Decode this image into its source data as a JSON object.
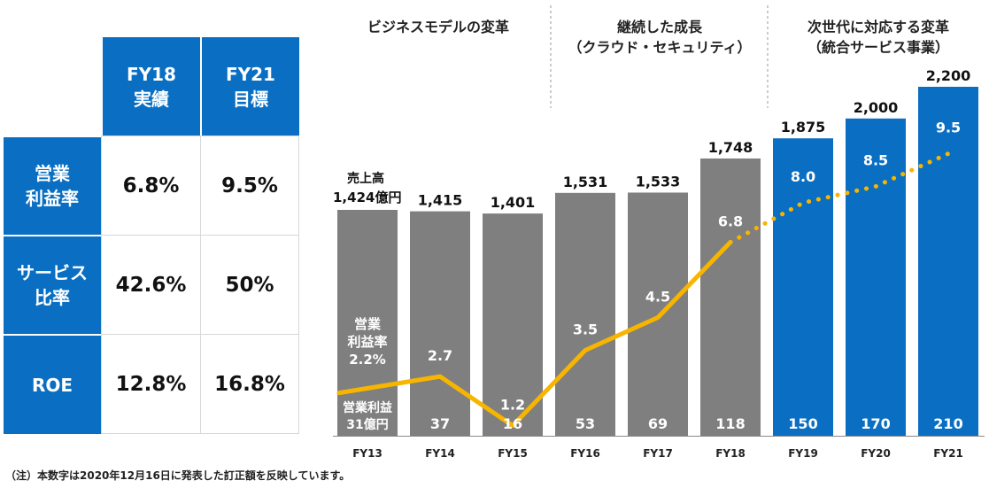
{
  "table": {
    "headers": [
      {
        "line1": "FY18",
        "line2": "実績"
      },
      {
        "line1": "FY21",
        "line2": "目標"
      }
    ],
    "rows": [
      {
        "label1": "営業",
        "label2": "利益率",
        "v1": "6.8%",
        "v2": "9.5%"
      },
      {
        "label1": "サービス",
        "label2": "比率",
        "v1": "42.6%",
        "v2": "50%"
      },
      {
        "label1": "ROE",
        "label2": "",
        "v1": "12.8%",
        "v2": "16.8%"
      }
    ]
  },
  "chart_data": {
    "type": "bar",
    "categories": [
      "FY13",
      "FY14",
      "FY15",
      "FY16",
      "FY17",
      "FY18",
      "FY19",
      "FY20",
      "FY21"
    ],
    "series": [
      {
        "name": "売上高",
        "values": [
          1424,
          1415,
          1401,
          1531,
          1533,
          1748,
          1875,
          2000,
          2200
        ]
      },
      {
        "name": "営業利益",
        "values": [
          31,
          37,
          16,
          53,
          69,
          118,
          150,
          170,
          210
        ]
      },
      {
        "name": "営業利益率",
        "values": [
          2.2,
          2.7,
          1.2,
          3.5,
          4.5,
          6.8,
          8.0,
          8.5,
          9.5
        ]
      }
    ],
    "revenue_labels": [
      "",
      "1,415",
      "1,401",
      "1,531",
      "1,533",
      "1,748",
      "1,875",
      "2,000",
      "2,200"
    ],
    "profit_labels": [
      "",
      "37",
      "16",
      "53",
      "69",
      "118",
      "150",
      "170",
      "210"
    ],
    "margin_labels": [
      "",
      "2.7",
      "1.2",
      "3.5",
      "4.5",
      "6.8",
      "8.0",
      "8.5",
      "9.5"
    ],
    "first_bar_revenue_label": [
      "売上高",
      "1,424億円"
    ],
    "first_bar_margin_label": [
      "営業",
      "利益率",
      "2.2%"
    ],
    "first_bar_profit_label": [
      "営業利益",
      "31億円"
    ],
    "phases": [
      {
        "lines": [
          "ビジネスモデルの変革"
        ]
      },
      {
        "lines": [
          "継続した成長",
          "（クラウド・セキュリティ）"
        ]
      },
      {
        "lines": [
          "次世代に対応する変革",
          "（統合サービス事業）"
        ]
      }
    ],
    "actual_count": 6,
    "colors": {
      "actual": "#7f7f7f",
      "target": "#0a6fc2",
      "line": "#f7b500"
    },
    "ylim": [
      0,
      2200
    ]
  },
  "note": "（注）本数字は2020年12月16日に発表した訂正額を反映しています。"
}
